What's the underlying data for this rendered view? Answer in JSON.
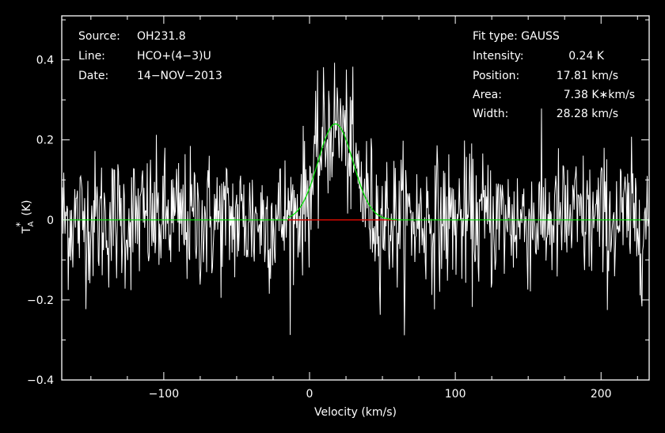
{
  "chart_data": {
    "type": "line",
    "xlabel": "Velocity (km/s)",
    "ylabel_main": "T",
    "ylabel_sub": "A",
    "ylabel_sup": "*",
    "ylabel_unit": "(K)",
    "xlim": [
      -170,
      233
    ],
    "ylim": [
      -0.4,
      0.51
    ],
    "xticks": [
      -100,
      0,
      100,
      200
    ],
    "xtick_labels": [
      "−100",
      "0",
      "100",
      "200"
    ],
    "yticks": [
      -0.4,
      -0.2,
      0,
      0.2,
      0.4
    ],
    "ytick_labels": [
      "−0.4",
      "−0.2",
      "0",
      "0.2",
      "0.4"
    ],
    "grid": false,
    "header_left": [
      {
        "key": "Source:",
        "value": "OH231.8"
      },
      {
        "key": "Line:",
        "value": "HCO+(4−3)U"
      },
      {
        "key": "Date:",
        "value": "14−NOV−2013"
      }
    ],
    "fit_type": "Fit type: GAUSS",
    "fit_rows": [
      {
        "key": "Intensity:",
        "value": "0.24 K"
      },
      {
        "key": "Position:",
        "value": "17.81 km/s"
      },
      {
        "key": "Area:",
        "value": "7.38 K∗km/s"
      },
      {
        "key": "Width:",
        "value": "28.28 km/s"
      }
    ],
    "fit": {
      "amplitude": 0.24,
      "center": 17.81,
      "fwhm": 28.28
    },
    "fit_window": [
      -15,
      60
    ],
    "noise_rms": 0.085,
    "colors": {
      "spectrum": "#ffffff",
      "fit": "#00e000",
      "window": "#e00000",
      "axes": "#ffffff",
      "background": "#000000"
    }
  }
}
